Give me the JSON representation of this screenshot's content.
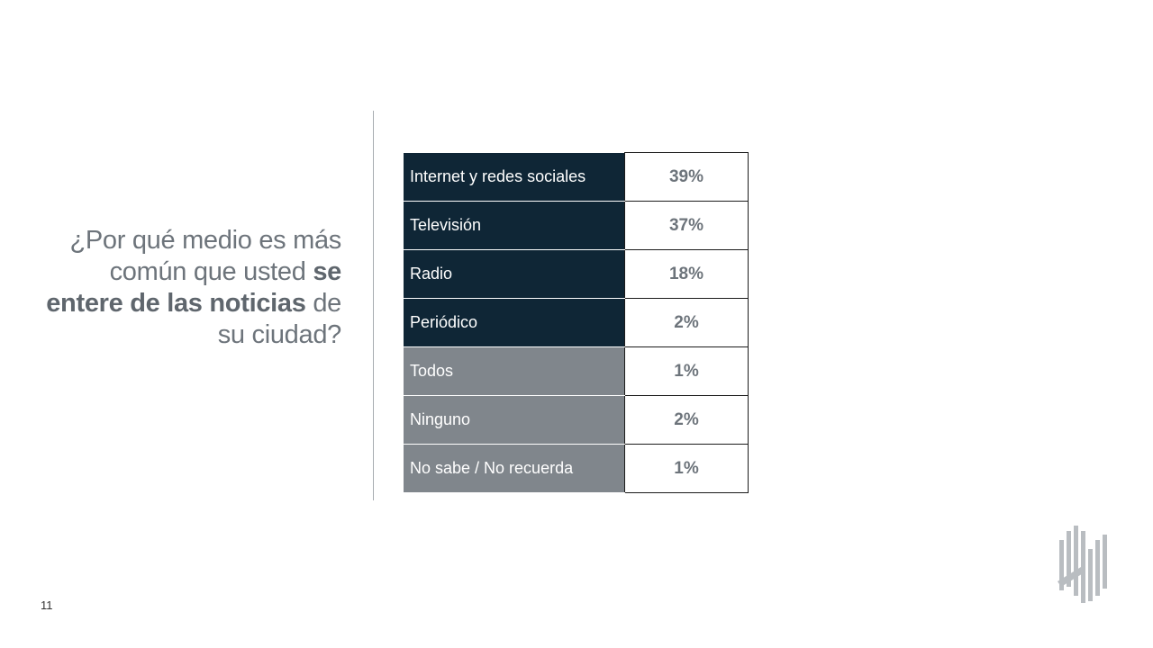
{
  "question": {
    "part1": "¿Por qué medio es más común que usted ",
    "bold": "se entere de las noticias",
    "part2": " de su ciudad?"
  },
  "table": {
    "rows": [
      {
        "label": "Internet y redes sociales",
        "value": "39%",
        "tone": "dark"
      },
      {
        "label": "Televisión",
        "value": "37%",
        "tone": "dark"
      },
      {
        "label": "Radio",
        "value": "18%",
        "tone": "dark"
      },
      {
        "label": "Periódico",
        "value": "2%",
        "tone": "dark"
      },
      {
        "label": "Todos",
        "value": "1%",
        "tone": "gray"
      },
      {
        "label": "Ninguno",
        "value": "2%",
        "tone": "gray"
      },
      {
        "label": "No sabe / No recuerda",
        "value": "1%",
        "tone": "gray"
      }
    ]
  },
  "colors": {
    "dark_row": "#0f2636",
    "gray_row": "#80868c",
    "value_text": "#6d747b"
  },
  "page_number": "11",
  "logo": "company-logo-icon"
}
